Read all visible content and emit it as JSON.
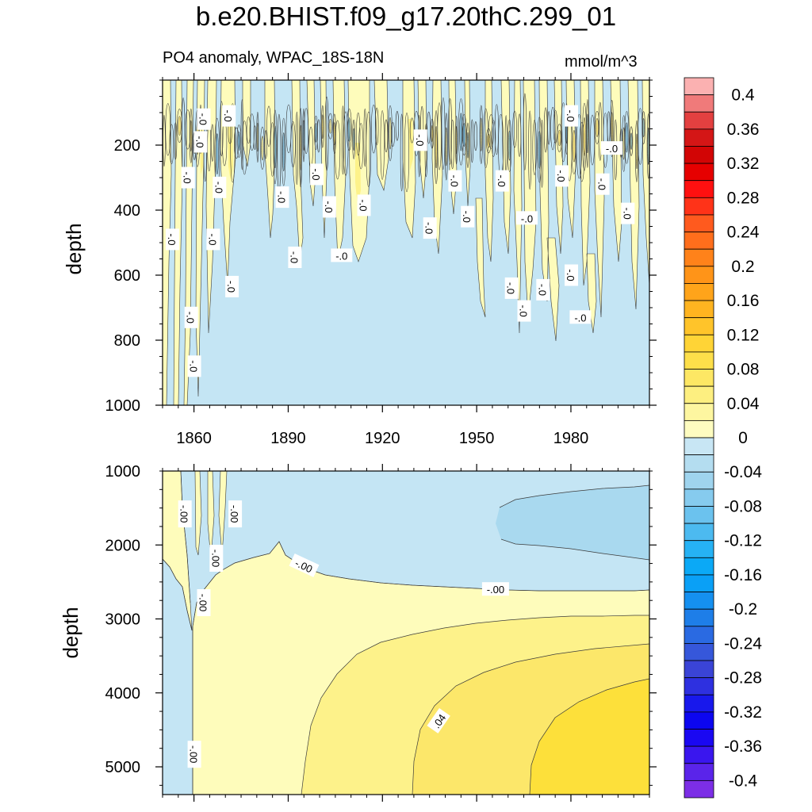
{
  "chart_data": {
    "title": "b.e20.BHIST.f09_g17.20thC.299_01",
    "subtitle": "PO4 anomaly, WPAC_18S-18N",
    "units": "mmol/m^3",
    "colors": {
      "neg_fill": "#c4e5f4",
      "neg_fill_2": "#a9d9ef",
      "pos_fill_1": "#fefcbb",
      "pos_fill_2": "#fdf28a",
      "pos_fill_3": "#fce76a",
      "pos_fill_4": "#fde03a",
      "contour": "#3a3a3a"
    },
    "panels": [
      {
        "type": "contour",
        "name": "upper",
        "ylabel": "depth",
        "xlim": [
          1850,
          2005
        ],
        "ylim": [
          0,
          1000
        ],
        "y_inverted": true,
        "x_ticks": [
          1860,
          1890,
          1920,
          1950,
          1980
        ],
        "x_tick_labels": [
          "1860",
          "1890",
          "1920",
          "1950",
          "1980"
        ],
        "y_ticks": [
          200,
          400,
          600,
          800,
          1000
        ],
        "y_tick_labels": [
          "200",
          "400",
          "600",
          "800",
          "1000"
        ],
        "contour_labels": [
          {
            "text": "-.0",
            "x": 1858,
            "y": 300
          },
          {
            "text": "-.0",
            "x": 1853,
            "y": 490
          },
          {
            "text": "-.0",
            "x": 1862,
            "y": 190
          },
          {
            "text": "-.0",
            "x": 1863,
            "y": 120
          },
          {
            "text": "-.0",
            "x": 1871,
            "y": 110
          },
          {
            "text": "-.0",
            "x": 1868,
            "y": 330
          },
          {
            "text": "-.0",
            "x": 1866,
            "y": 490
          },
          {
            "text": "-.0",
            "x": 1872,
            "y": 635
          },
          {
            "text": "-.0",
            "x": 1859,
            "y": 730
          },
          {
            "text": "-.0",
            "x": 1860,
            "y": 880
          },
          {
            "text": "-.0",
            "x": 1888,
            "y": 360
          },
          {
            "text": "-.0",
            "x": 1899,
            "y": 290
          },
          {
            "text": "-.0",
            "x": 1903,
            "y": 390
          },
          {
            "text": "-.0",
            "x": 1892,
            "y": 545
          },
          {
            "text": "-.0",
            "x": 1907,
            "y": 540
          },
          {
            "text": "-.0",
            "x": 1914,
            "y": 385
          },
          {
            "text": "-.0",
            "x": 1932,
            "y": 185
          },
          {
            "text": "-.0",
            "x": 1935,
            "y": 455
          },
          {
            "text": "-.0",
            "x": 1943,
            "y": 310
          },
          {
            "text": "-.0",
            "x": 1947,
            "y": 420
          },
          {
            "text": "-.0",
            "x": 1958,
            "y": 310
          },
          {
            "text": "-.0",
            "x": 1961,
            "y": 640
          },
          {
            "text": "-.0",
            "x": 1966,
            "y": 425
          },
          {
            "text": "-.0",
            "x": 1965,
            "y": 710
          },
          {
            "text": "-.0",
            "x": 1971,
            "y": 645
          },
          {
            "text": "-.0",
            "x": 1977,
            "y": 295
          },
          {
            "text": "-.0",
            "x": 1980,
            "y": 110
          },
          {
            "text": "-.0",
            "x": 1980,
            "y": 600
          },
          {
            "text": "-.0",
            "x": 1983,
            "y": 730
          },
          {
            "text": "-.0",
            "x": 1993,
            "y": 210
          },
          {
            "text": "-.0",
            "x": 1990,
            "y": 320
          },
          {
            "text": "-.0",
            "x": 1998,
            "y": 410
          }
        ]
      },
      {
        "type": "contour",
        "name": "lower",
        "ylabel": "depth",
        "xlim": [
          1850,
          2005
        ],
        "ylim": [
          1000,
          5375
        ],
        "y_inverted": true,
        "x_ticks": [
          1860,
          1890,
          1920,
          1950,
          1980
        ],
        "y_ticks": [
          2000,
          3000,
          4000,
          5000
        ],
        "y_tick_labels": [
          "2000",
          "3000",
          "4000",
          "5000"
        ],
        "contour_labels": [
          {
            "text": "-.00",
            "x": 1857,
            "y": 1580
          },
          {
            "text": "-.00",
            "x": 1873,
            "y": 1580
          },
          {
            "text": "-.00",
            "x": 1867,
            "y": 2180
          },
          {
            "text": "-.00",
            "x": 1863,
            "y": 2780
          },
          {
            "text": "-.00",
            "x": 1895,
            "y": 2280
          },
          {
            "text": "-.00",
            "x": 1956,
            "y": 2600
          },
          {
            "text": "-.00",
            "x": 1860,
            "y": 4830
          },
          {
            "text": ".04",
            "x": 1938,
            "y": 4380
          }
        ]
      }
    ],
    "colorbar": {
      "levels": [
        -0.42,
        -0.4,
        -0.38,
        -0.36,
        -0.34,
        -0.32,
        -0.3,
        -0.28,
        -0.26,
        -0.24,
        -0.22,
        -0.2,
        -0.18,
        -0.16,
        -0.14,
        -0.12,
        -0.1,
        -0.08,
        -0.06,
        -0.04,
        -0.02,
        0,
        0.02,
        0.04,
        0.06,
        0.08,
        0.1,
        0.12,
        0.14,
        0.16,
        0.18,
        0.2,
        0.22,
        0.24,
        0.26,
        0.28,
        0.3,
        0.32,
        0.34,
        0.36,
        0.38,
        0.4,
        0.42
      ],
      "tick_labels": [
        "0.4",
        "0.36",
        "0.32",
        "0.28",
        "0.24",
        "0.2",
        "0.16",
        "0.12",
        "0.08",
        "0.04",
        "0",
        "-0.04",
        "-0.08",
        "-0.12",
        "-0.16",
        "-0.2",
        "-0.24",
        "-0.28",
        "-0.32",
        "-0.36",
        "-0.4"
      ],
      "colors_top_to_bottom": [
        "#fbb1b1",
        "#f07a7a",
        "#e34040",
        "#d41616",
        "#d20505",
        "#e60000",
        "#ff1010",
        "#ff3318",
        "#ff5a1e",
        "#ff6e1c",
        "#ff821a",
        "#ff9418",
        "#ffa41a",
        "#ffb420",
        "#ffc42a",
        "#ffd436",
        "#fddf4a",
        "#fde764",
        "#fdef80",
        "#fdf6a0",
        "#fefcc0",
        "#c8e6f4",
        "#b4ddf0",
        "#9fd4ee",
        "#86cbee",
        "#6bc2ee",
        "#4cbaf0",
        "#26b2f4",
        "#0ba9f6",
        "#0aa0f6",
        "#1590f0",
        "#1e7ee8",
        "#2a6ae2",
        "#3657da",
        "#3a44d6",
        "#2e30e0",
        "#1818ec",
        "#0c06f0",
        "#1a08f2",
        "#3a16ee",
        "#5a24ea",
        "#7c2ee6"
      ]
    }
  }
}
